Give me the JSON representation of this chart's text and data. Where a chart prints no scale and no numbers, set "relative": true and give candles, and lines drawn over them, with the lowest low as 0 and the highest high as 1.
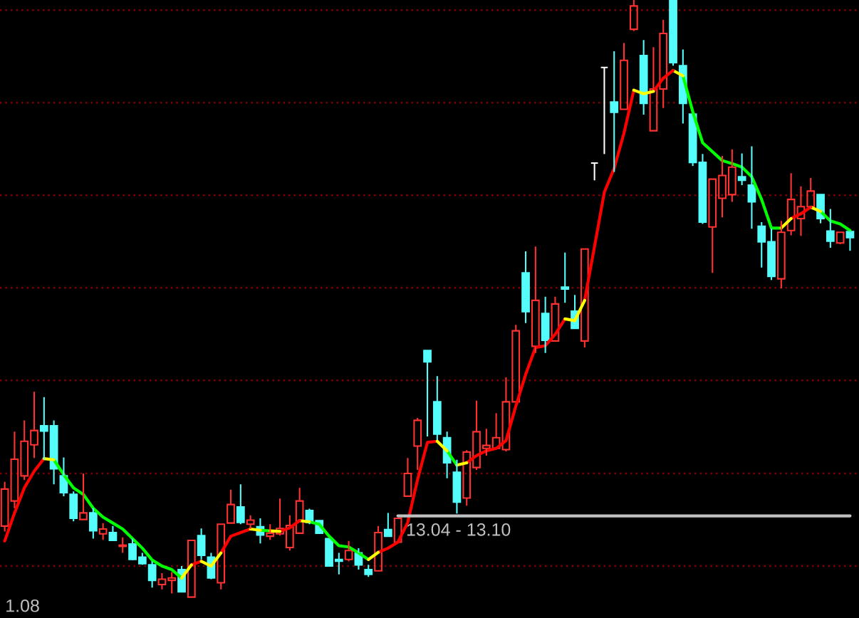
{
  "chart_data": {
    "type": "candlestick",
    "relative": true,
    "categories": [
      null,
      null,
      null,
      null,
      null,
      null,
      null,
      null,
      null,
      null,
      null,
      null,
      null,
      null,
      null,
      null,
      null,
      null,
      null,
      null,
      null,
      null,
      null,
      null,
      null,
      null,
      null,
      null,
      null,
      null,
      null,
      null,
      null,
      null,
      null,
      null,
      null,
      null,
      null,
      null,
      null,
      null,
      null,
      null,
      null,
      null,
      null,
      null,
      null,
      null,
      null,
      null,
      null,
      null,
      null,
      null,
      null,
      null,
      null,
      null,
      null,
      null,
      null,
      null,
      null,
      null,
      null,
      null,
      null,
      null,
      null,
      null,
      null,
      null,
      null,
      null,
      null,
      null,
      null,
      null,
      null,
      null,
      null,
      null,
      null,
      null,
      null
    ],
    "ohlc": [
      [
        0.119,
        0.193,
        0.11,
        0.181
      ],
      [
        0.161,
        0.277,
        0.149,
        0.231
      ],
      [
        0.203,
        0.296,
        0.196,
        0.261
      ],
      [
        0.255,
        0.344,
        0.233,
        0.279
      ],
      [
        0.287,
        0.335,
        0.23,
        0.278
      ],
      [
        0.287,
        0.296,
        0.189,
        0.215
      ],
      [
        0.203,
        0.234,
        0.169,
        0.175
      ],
      [
        0.172,
        0.177,
        0.127,
        0.132
      ],
      [
        0.13,
        0.207,
        0.13,
        0.141
      ],
      [
        0.141,
        0.149,
        0.098,
        0.111
      ],
      [
        0.106,
        0.124,
        0.096,
        0.114
      ],
      [
        0.108,
        0.119,
        0.094,
        0.095
      ],
      [
        0.085,
        0.1,
        0.074,
        0.087
      ],
      [
        0.089,
        0.098,
        0.062,
        0.063
      ],
      [
        0.067,
        0.074,
        0.054,
        0.056
      ],
      [
        0.054,
        0.06,
        0.016,
        0.028
      ],
      [
        0.021,
        0.04,
        0.013,
        0.03
      ],
      [
        0.028,
        0.042,
        0.006,
        0.032
      ],
      [
        0.046,
        0.052,
        0.009,
        0.009
      ],
      [
        0,
        0.095,
        0,
        0.095
      ],
      [
        0.103,
        0.115,
        0.063,
        0.07
      ],
      [
        0.067,
        0.074,
        0.03,
        0.032
      ],
      [
        0.024,
        0.122,
        0.013,
        0.122
      ],
      [
        0.124,
        0.18,
        0.124,
        0.155
      ],
      [
        0.151,
        0.189,
        0.122,
        0.125
      ],
      [
        0.122,
        0.137,
        0.114,
        0.129
      ],
      [
        0.118,
        0.132,
        0.09,
        0.104
      ],
      [
        0.102,
        0.122,
        0.096,
        0.107
      ],
      [
        0.106,
        0.165,
        0.103,
        0.115
      ],
      [
        0.083,
        0.137,
        0.078,
        0.12
      ],
      [
        0.107,
        0.183,
        0.107,
        0.161
      ],
      [
        0.145,
        0.148,
        0.122,
        0.125
      ],
      [
        0.128,
        0.128,
        0.107,
        0.107
      ],
      [
        0.098,
        0.098,
        0.052,
        0.052
      ],
      [
        0.063,
        0.074,
        0.038,
        0.06
      ],
      [
        0.063,
        0.094,
        0.06,
        0.078
      ],
      [
        0.074,
        0.082,
        0.046,
        0.054
      ],
      [
        0.046,
        0.054,
        0.034,
        0.038
      ],
      [
        0.044,
        0.119,
        0.044,
        0.108
      ],
      [
        0.113,
        0.141,
        0.102,
        0.102
      ],
      [
        0.092,
        0.132,
        0.092,
        0.132
      ],
      [
        0.169,
        0.233,
        0.169,
        0.207
      ],
      [
        0.253,
        0.3,
        0.213,
        0.296
      ],
      [
        0.413,
        0.413,
        0.269,
        0.394
      ],
      [
        0.327,
        0.37,
        0.263,
        0.273
      ],
      [
        0.267,
        0.277,
        0.199,
        0.225
      ],
      [
        0.209,
        0.23,
        0.14,
        0.159
      ],
      [
        0.166,
        0.246,
        0.153,
        0.243
      ],
      [
        0.217,
        0.329,
        0.213,
        0.277
      ],
      [
        0.249,
        0.282,
        0.237,
        0.254
      ],
      [
        0.249,
        0.308,
        0.249,
        0.267
      ],
      [
        0.247,
        0.368,
        0.244,
        0.327
      ],
      [
        0.327,
        0.456,
        0.327,
        0.446
      ],
      [
        0.543,
        0.579,
        0.459,
        0.478
      ],
      [
        0.42,
        0.587,
        0.409,
        0.497
      ],
      [
        0.475,
        0.503,
        0.409,
        0.43
      ],
      [
        0.429,
        0.503,
        0.429,
        0.491
      ],
      [
        0.519,
        0.577,
        0.493,
        0.516
      ],
      [
        0.479,
        0.506,
        0.45,
        0.45
      ],
      [
        0.429,
        0.583,
        0.418,
        0.583
      ],
      [
        0.727,
        0.727,
        0.698,
        0.727
      ],
      [
        0.887,
        0.887,
        0.742,
        0.887
      ],
      [
        0.829,
        0.914,
        0.712,
        0.812
      ],
      [
        0.817,
        0.928,
        0.817,
        0.899
      ],
      [
        0.951,
        1,
        0.948,
        0.99
      ],
      [
        0.907,
        0.933,
        0.808,
        0.827
      ],
      [
        0.781,
        0.921,
        0.781,
        0.851
      ],
      [
        0.851,
        0.967,
        0.819,
        0.944
      ],
      [
        1,
        1,
        0.89,
        0.895
      ],
      [
        0.89,
        0.917,
        0.793,
        0.827
      ],
      [
        0.809,
        0.809,
        0.722,
        0.728
      ],
      [
        0.728,
        0.742,
        0.625,
        0.628
      ],
      [
        0.62,
        0.7,
        0.543,
        0.7
      ],
      [
        0.668,
        0.739,
        0.636,
        0.706
      ],
      [
        0.674,
        0.75,
        0.662,
        0.72
      ],
      [
        0.704,
        0.743,
        0.69,
        0.698
      ],
      [
        0.69,
        0.755,
        0.617,
        0.662
      ],
      [
        0.621,
        0.628,
        0.552,
        0.595
      ],
      [
        0.595,
        0.617,
        0.531,
        0.537
      ],
      [
        0.533,
        0.63,
        0.517,
        0.611
      ],
      [
        0.614,
        0.71,
        0.606,
        0.666
      ],
      [
        0.634,
        0.688,
        0.605,
        0.654
      ],
      [
        0.654,
        0.702,
        0.65,
        0.68
      ],
      [
        0.674,
        0.674,
        0.626,
        0.634
      ],
      [
        0.613,
        0.65,
        0.585,
        0.596
      ],
      [
        0.593,
        0.611,
        0.591,
        0.611
      ],
      [
        0.612,
        0.614,
        0.58,
        0.602
      ]
    ],
    "colors": [
      "#ff3232",
      "#ff3232",
      "#ff3232",
      "#ff3232",
      "#54fcfc",
      "#54fcfc",
      "#54fcfc",
      "#54fcfc",
      "#ff3232",
      "#54fcfc",
      "#ff3232",
      "#54fcfc",
      "#ff3232",
      "#54fcfc",
      "#54fcfc",
      "#54fcfc",
      "#ff3232",
      "#ff3232",
      "#54fcfc",
      "#ff3232",
      "#54fcfc",
      "#54fcfc",
      "#ff3232",
      "#ff3232",
      "#54fcfc",
      "#ff3232",
      "#54fcfc",
      "#ff3232",
      "#ff3232",
      "#ff3232",
      "#ff3232",
      "#54fcfc",
      "#54fcfc",
      "#54fcfc",
      "#54fcfc",
      "#ff3232",
      "#54fcfc",
      "#54fcfc",
      "#ff3232",
      "#54fcfc",
      "#ff3232",
      "#ff3232",
      "#ff3232",
      "#54fcfc",
      "#54fcfc",
      "#54fcfc",
      "#54fcfc",
      "#ff3232",
      "#ff3232",
      "#ff3232",
      "#ff3232",
      "#ff3232",
      "#ff3232",
      "#54fcfc",
      "#ff3232",
      "#54fcfc",
      "#ff3232",
      "#54fcfc",
      "#54fcfc",
      "#ff3232",
      "#ffffff",
      "#ffffff",
      "#54fcfc",
      "#ff3232",
      "#ff3232",
      "#54fcfc",
      "#ff3232",
      "#ff3232",
      "#54fcfc",
      "#54fcfc",
      "#54fcfc",
      "#54fcfc",
      "#ff3232",
      "#ff3232",
      "#ff3232",
      "#54fcfc",
      "#54fcfc",
      "#54fcfc",
      "#54fcfc",
      "#ff3232",
      "#ff3232",
      "#ff3232",
      "#ff3232",
      "#54fcfc",
      "#54fcfc",
      "#ff3232",
      "#54fcfc"
    ],
    "series": [
      {
        "type": "line",
        "color": "#ff0000",
        "values": [
          0.094,
          0.141,
          0.183,
          0.211,
          0.232,
          null,
          null,
          null,
          null,
          null,
          null,
          null,
          null,
          null,
          null,
          null,
          null,
          null,
          null,
          0.054,
          0.06,
          null,
          0.074,
          0.102,
          0.108,
          0.114,
          null,
          null,
          0.11,
          0.116,
          null,
          null,
          null,
          null,
          null,
          null,
          null,
          null,
          0.075,
          0.082,
          0.092,
          0.125,
          0.197,
          0.259,
          0.261,
          null,
          null,
          0.225,
          0.237,
          0.245,
          0.249,
          0.262,
          0.32,
          0.373,
          0.418,
          0.421,
          0.44,
          0.466,
          null,
          0.497,
          0.587,
          0.678,
          0.718,
          0.777,
          0.849,
          null,
          0.847,
          0.869,
          null,
          null,
          null,
          null,
          null,
          null,
          null,
          null,
          null,
          null,
          null,
          null,
          0.634,
          0.642,
          null,
          null,
          null,
          null,
          null
        ]
      },
      {
        "type": "line",
        "color": "#00ff00",
        "values": [
          null,
          null,
          null,
          null,
          null,
          0.23,
          0.205,
          0.183,
          0.172,
          0.149,
          0.134,
          0.124,
          0.114,
          0.098,
          0.082,
          0.062,
          0.052,
          0.046,
          0.032,
          null,
          null,
          null,
          null,
          null,
          null,
          null,
          0.112,
          0.111,
          null,
          null,
          null,
          0.126,
          0.122,
          0.102,
          0.086,
          0.084,
          0.074,
          0.063,
          null,
          null,
          null,
          null,
          null,
          null,
          null,
          0.245,
          0.221,
          null,
          null,
          null,
          null,
          null,
          null,
          null,
          null,
          null,
          null,
          null,
          null,
          null,
          null,
          null,
          null,
          null,
          null,
          null,
          null,
          null,
          null,
          0.873,
          0.813,
          0.761,
          0.746,
          0.731,
          0.726,
          0.72,
          0.704,
          0.666,
          0.618,
          0.618,
          null,
          null,
          null,
          0.646,
          0.63,
          0.625,
          0.614
        ]
      },
      {
        "type": "line",
        "color": "#ffff00",
        "values": [
          null,
          null,
          null,
          null,
          0.232,
          0.23,
          null,
          null,
          null,
          null,
          null,
          null,
          null,
          null,
          null,
          null,
          null,
          null,
          0.032,
          0.054,
          null,
          null,
          null,
          null,
          null,
          0.114,
          0.112,
          null,
          null,
          null,
          0.128,
          0.126,
          null,
          null,
          null,
          null,
          null,
          null,
          null,
          null,
          null,
          null,
          null,
          null,
          0.261,
          0.245,
          null,
          null,
          null,
          null,
          null,
          null,
          null,
          null,
          null,
          null,
          null,
          0.466,
          0.463,
          0.497,
          null,
          null,
          null,
          null,
          null,
          0.843,
          0.847,
          null,
          0.882,
          0.873,
          null,
          null,
          null,
          null,
          null,
          null,
          null,
          null,
          null,
          null,
          null,
          null,
          0.653,
          0.646,
          null,
          null,
          null
        ]
      },
      {
        "type": "line",
        "color": "#ffff00",
        "values": [
          null,
          null,
          null,
          null,
          null,
          null,
          null,
          null,
          null,
          null,
          null,
          null,
          null,
          null,
          null,
          null,
          null,
          null,
          null,
          null,
          0.06,
          0.052,
          0.074,
          null,
          null,
          null,
          null,
          0.111,
          0.11,
          null,
          null,
          null,
          null,
          null,
          null,
          null,
          null,
          0.063,
          0.075,
          null,
          null,
          null,
          null,
          null,
          null,
          null,
          0.221,
          0.225,
          null,
          null,
          null,
          null,
          null,
          null,
          null,
          null,
          null,
          null,
          null,
          null,
          null,
          null,
          null,
          null,
          0.849,
          0.843,
          null,
          null,
          null,
          null,
          null,
          null,
          null,
          null,
          null,
          null,
          null,
          null,
          null,
          0.618,
          0.634,
          null,
          null,
          null,
          null,
          null,
          null
        ]
      },
      {
        "type": "line",
        "color": "#ff0000",
        "values": [
          null,
          null,
          null,
          null,
          null,
          null,
          null,
          null,
          null,
          null,
          null,
          null,
          null,
          null,
          null,
          null,
          null,
          null,
          null,
          null,
          null,
          null,
          null,
          null,
          null,
          null,
          null,
          null,
          null,
          0.116,
          0.128,
          null,
          null,
          null,
          null,
          null,
          null,
          null,
          null,
          null,
          null,
          null,
          null,
          null,
          null,
          null,
          null,
          null,
          null,
          null,
          null,
          null,
          null,
          null,
          null,
          null,
          null,
          null,
          null,
          null,
          null,
          null,
          null,
          null,
          null,
          null,
          null,
          0.869,
          0.882,
          null,
          null,
          null,
          null,
          null,
          null,
          null,
          null,
          null,
          null,
          null,
          null,
          0.642,
          0.653,
          null,
          null,
          null,
          null
        ]
      },
      {
        "type": "line",
        "color": "#c0c0c0",
        "values": [
          null,
          null,
          null,
          null,
          null,
          null,
          null,
          null,
          null,
          null,
          null,
          null,
          null,
          null,
          null,
          null,
          null,
          null,
          null,
          null,
          null,
          null,
          null,
          null,
          null,
          null,
          null,
          null,
          null,
          null,
          null,
          null,
          null,
          null,
          null,
          null,
          null,
          null,
          null,
          null,
          0.136,
          0.136,
          0.136,
          0.136,
          0.136,
          0.136,
          0.136,
          0.136,
          0.136,
          0.136,
          0.136,
          0.136,
          0.136,
          0.136,
          0.136,
          0.136,
          0.136,
          0.136,
          0.136,
          0.136,
          0.136,
          0.136,
          0.136,
          0.136,
          0.136,
          0.136,
          0.136,
          0.136,
          0.136,
          0.136,
          0.136,
          0.136,
          0.136,
          0.136,
          0.136,
          0.136,
          0.136,
          0.136,
          0.136,
          0.136,
          0.136,
          0.136,
          0.136,
          0.136,
          0.136,
          0.136,
          0.136
        ]
      }
    ],
    "ref_lines": [
      {
        "axis": "y",
        "value": 0.052,
        "color": "#800000",
        "line_style": "dotted"
      },
      {
        "axis": "y",
        "value": 0.207,
        "color": "#800000",
        "line_style": "dotted"
      },
      {
        "axis": "y",
        "value": 0.363,
        "color": "#800000",
        "line_style": "dotted"
      },
      {
        "axis": "y",
        "value": 0.518,
        "color": "#800000",
        "line_style": "dotted"
      },
      {
        "axis": "y",
        "value": 0.673,
        "color": "#800000",
        "line_style": "dotted"
      },
      {
        "axis": "y",
        "value": 0.828,
        "color": "#800000",
        "line_style": "dotted"
      },
      {
        "axis": "y",
        "value": 0.983,
        "color": "#800000",
        "line_style": "dotted"
      }
    ],
    "annotations": [
      "1.08",
      {
        "text": "13.04 - 13.10",
        "y": 0.136
      }
    ]
  }
}
